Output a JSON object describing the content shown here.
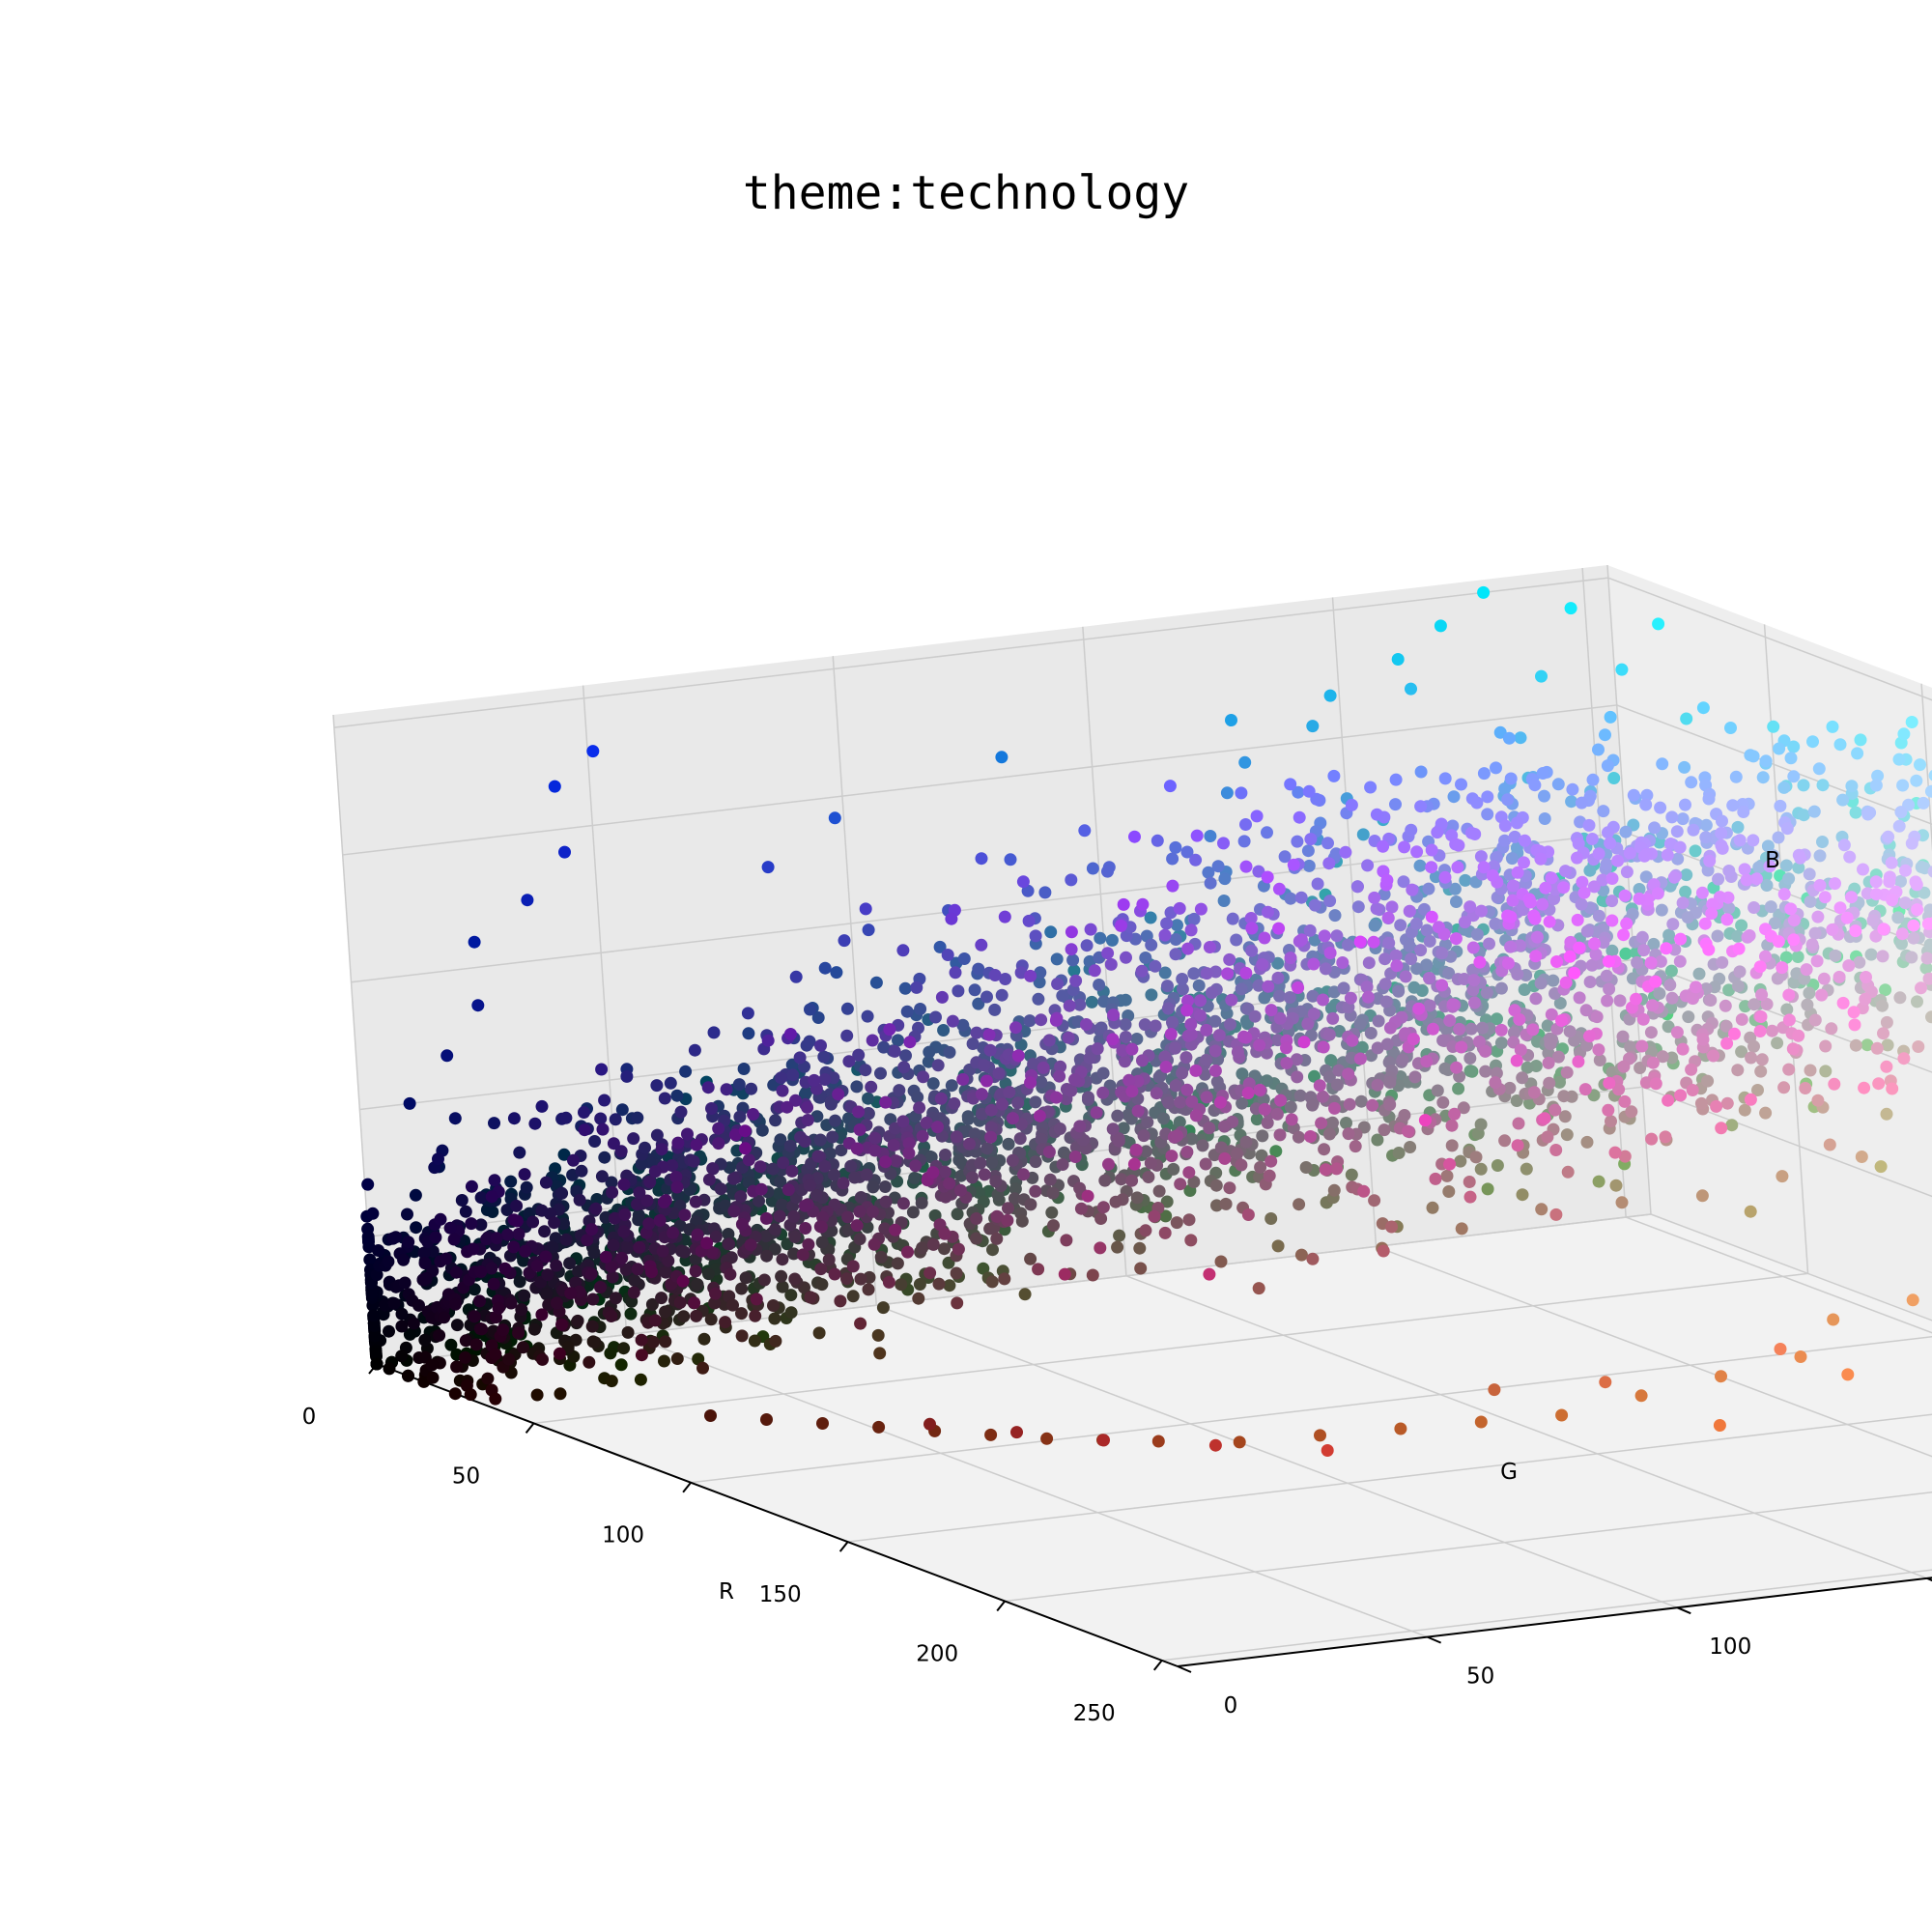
{
  "chart_data": {
    "type": "scatter",
    "title": "theme:technology",
    "xlabel": "R",
    "ylabel": "G",
    "zlabel": "B",
    "xlim": [
      0,
      255
    ],
    "ylim": [
      0,
      255
    ],
    "zlim": [
      0,
      255
    ],
    "ticks": [
      0,
      50,
      100,
      150,
      200,
      250
    ],
    "grid": true,
    "point_color": "rgb(R,G,B)",
    "description_of_distribution": "",
    "points": [
      [
        0,
        0,
        0
      ],
      [
        5,
        3,
        8
      ],
      [
        10,
        6,
        14
      ],
      [
        14,
        8,
        20
      ],
      [
        20,
        10,
        26
      ],
      [
        25,
        15,
        35
      ],
      [
        30,
        18,
        42
      ],
      [
        35,
        22,
        50
      ],
      [
        40,
        26,
        58
      ],
      [
        45,
        30,
        65
      ],
      [
        8,
        5,
        12
      ],
      [
        12,
        10,
        30
      ],
      [
        18,
        14,
        45
      ],
      [
        22,
        18,
        60
      ],
      [
        28,
        22,
        75
      ],
      [
        30,
        25,
        90
      ],
      [
        34,
        30,
        105
      ],
      [
        15,
        10,
        20
      ],
      [
        20,
        12,
        18
      ],
      [
        26,
        16,
        22
      ],
      [
        30,
        22,
        25
      ],
      [
        36,
        26,
        30
      ],
      [
        42,
        30,
        36
      ],
      [
        48,
        34,
        40
      ],
      [
        55,
        40,
        46
      ],
      [
        60,
        45,
        52
      ],
      [
        68,
        50,
        58
      ],
      [
        75,
        56,
        64
      ],
      [
        82,
        60,
        70
      ],
      [
        90,
        66,
        76
      ],
      [
        40,
        35,
        120
      ],
      [
        45,
        40,
        135
      ],
      [
        50,
        48,
        150
      ],
      [
        55,
        55,
        165
      ],
      [
        60,
        62,
        180
      ],
      [
        40,
        60,
        200
      ],
      [
        30,
        80,
        210
      ],
      [
        20,
        120,
        220
      ],
      [
        30,
        160,
        230
      ],
      [
        40,
        190,
        240
      ],
      [
        50,
        210,
        245
      ],
      [
        60,
        220,
        250
      ],
      [
        80,
        220,
        240
      ],
      [
        100,
        225,
        245
      ],
      [
        120,
        230,
        248
      ],
      [
        140,
        235,
        250
      ],
      [
        160,
        238,
        250
      ],
      [
        180,
        240,
        252
      ],
      [
        200,
        245,
        253
      ],
      [
        220,
        248,
        254
      ],
      [
        240,
        250,
        255
      ],
      [
        250,
        252,
        255
      ],
      [
        255,
        255,
        255
      ],
      [
        230,
        240,
        250
      ],
      [
        210,
        225,
        245
      ],
      [
        190,
        210,
        240
      ],
      [
        170,
        190,
        235
      ],
      [
        150,
        170,
        230
      ],
      [
        130,
        150,
        225
      ],
      [
        110,
        130,
        220
      ],
      [
        90,
        110,
        215
      ],
      [
        70,
        90,
        210
      ],
      [
        150,
        120,
        220
      ],
      [
        170,
        130,
        230
      ],
      [
        190,
        150,
        235
      ],
      [
        200,
        170,
        240
      ],
      [
        210,
        190,
        245
      ],
      [
        220,
        200,
        235
      ],
      [
        230,
        210,
        225
      ],
      [
        235,
        220,
        210
      ],
      [
        240,
        225,
        195
      ],
      [
        245,
        230,
        180
      ],
      [
        238,
        215,
        170
      ],
      [
        230,
        200,
        160
      ],
      [
        220,
        185,
        150
      ],
      [
        210,
        170,
        140
      ],
      [
        200,
        160,
        130
      ],
      [
        190,
        150,
        120
      ],
      [
        180,
        140,
        115
      ],
      [
        170,
        130,
        110
      ],
      [
        160,
        120,
        100
      ],
      [
        150,
        110,
        90
      ],
      [
        140,
        100,
        85
      ],
      [
        130,
        90,
        80
      ],
      [
        120,
        80,
        75
      ],
      [
        110,
        72,
        70
      ],
      [
        100,
        65,
        65
      ],
      [
        90,
        58,
        60
      ],
      [
        80,
        50,
        55
      ],
      [
        70,
        45,
        48
      ],
      [
        60,
        40,
        42
      ],
      [
        50,
        35,
        36
      ],
      [
        45,
        30,
        30
      ],
      [
        40,
        26,
        25
      ],
      [
        35,
        22,
        20
      ],
      [
        30,
        20,
        16
      ],
      [
        25,
        16,
        12
      ],
      [
        20,
        12,
        8
      ],
      [
        15,
        10,
        6
      ],
      [
        10,
        6,
        4
      ],
      [
        180,
        110,
        190
      ],
      [
        160,
        100,
        180
      ],
      [
        140,
        90,
        170
      ],
      [
        120,
        80,
        160
      ],
      [
        100,
        70,
        150
      ],
      [
        80,
        60,
        140
      ],
      [
        60,
        50,
        130
      ],
      [
        50,
        45,
        110
      ],
      [
        40,
        40,
        95
      ],
      [
        35,
        35,
        80
      ],
      [
        120,
        140,
        200
      ],
      [
        100,
        120,
        190
      ],
      [
        80,
        110,
        180
      ],
      [
        60,
        100,
        170
      ],
      [
        50,
        90,
        160
      ],
      [
        40,
        80,
        150
      ],
      [
        35,
        70,
        140
      ],
      [
        30,
        60,
        130
      ],
      [
        25,
        50,
        115
      ],
      [
        20,
        40,
        100
      ],
      [
        70,
        130,
        210
      ],
      [
        60,
        140,
        220
      ],
      [
        50,
        150,
        225
      ],
      [
        40,
        170,
        230
      ],
      [
        30,
        180,
        235
      ],
      [
        20,
        200,
        240
      ],
      [
        10,
        215,
        245
      ],
      [
        0,
        230,
        250
      ],
      [
        20,
        235,
        252
      ],
      [
        40,
        240,
        254
      ],
      [
        200,
        130,
        180
      ],
      [
        210,
        140,
        190
      ],
      [
        220,
        150,
        200
      ],
      [
        230,
        160,
        210
      ],
      [
        240,
        170,
        220
      ],
      [
        190,
        120,
        150
      ],
      [
        180,
        110,
        130
      ],
      [
        170,
        100,
        110
      ],
      [
        160,
        90,
        95
      ],
      [
        150,
        85,
        80
      ],
      [
        230,
        150,
        90
      ],
      [
        240,
        160,
        100
      ],
      [
        245,
        170,
        110
      ],
      [
        235,
        140,
        80
      ],
      [
        225,
        130,
        70
      ],
      [
        215,
        120,
        60
      ],
      [
        205,
        110,
        50
      ],
      [
        195,
        100,
        45
      ],
      [
        185,
        90,
        40
      ],
      [
        175,
        80,
        35
      ],
      [
        165,
        70,
        30
      ],
      [
        155,
        60,
        28
      ],
      [
        145,
        55,
        25
      ],
      [
        135,
        50,
        22
      ],
      [
        125,
        45,
        20
      ],
      [
        115,
        40,
        18
      ],
      [
        105,
        35,
        16
      ],
      [
        95,
        30,
        14
      ],
      [
        85,
        25,
        12
      ],
      [
        75,
        20,
        10
      ],
      [
        210,
        60,
        50
      ],
      [
        190,
        50,
        45
      ],
      [
        170,
        40,
        40
      ],
      [
        150,
        35,
        35
      ],
      [
        130,
        30,
        30
      ],
      [
        200,
        100,
        60
      ],
      [
        220,
        110,
        70
      ],
      [
        240,
        120,
        60
      ],
      [
        250,
        140,
        80
      ],
      [
        245,
        130,
        90
      ],
      [
        60,
        90,
        60
      ],
      [
        80,
        110,
        70
      ],
      [
        100,
        130,
        80
      ],
      [
        120,
        150,
        90
      ],
      [
        140,
        160,
        100
      ],
      [
        90,
        120,
        100
      ],
      [
        70,
        100,
        90
      ],
      [
        50,
        80,
        70
      ],
      [
        40,
        70,
        60
      ],
      [
        30,
        60,
        50
      ],
      [
        130,
        110,
        140
      ],
      [
        110,
        95,
        130
      ],
      [
        95,
        80,
        120
      ],
      [
        85,
        70,
        110
      ],
      [
        75,
        65,
        100
      ],
      [
        140,
        120,
        150
      ],
      [
        150,
        130,
        160
      ],
      [
        160,
        140,
        170
      ],
      [
        170,
        150,
        180
      ],
      [
        180,
        160,
        190
      ],
      [
        5,
        5,
        60
      ],
      [
        10,
        8,
        80
      ],
      [
        0,
        10,
        100
      ],
      [
        5,
        15,
        120
      ],
      [
        8,
        20,
        140
      ],
      [
        0,
        25,
        160
      ],
      [
        10,
        30,
        180
      ],
      [
        15,
        35,
        200
      ],
      [
        5,
        40,
        220
      ],
      [
        10,
        45,
        235
      ],
      [
        100,
        100,
        100
      ],
      [
        120,
        120,
        120
      ],
      [
        140,
        140,
        140
      ],
      [
        160,
        160,
        160
      ],
      [
        180,
        180,
        180
      ],
      [
        200,
        200,
        200
      ],
      [
        80,
        80,
        80
      ],
      [
        60,
        60,
        60
      ],
      [
        40,
        40,
        40
      ],
      [
        20,
        20,
        20
      ],
      [
        55,
        70,
        180
      ],
      [
        65,
        80,
        190
      ],
      [
        75,
        90,
        200
      ],
      [
        85,
        100,
        210
      ],
      [
        95,
        110,
        220
      ],
      [
        105,
        120,
        230
      ],
      [
        115,
        130,
        240
      ],
      [
        125,
        140,
        245
      ],
      [
        135,
        150,
        250
      ],
      [
        145,
        160,
        252
      ],
      [
        170,
        200,
        250
      ],
      [
        180,
        210,
        252
      ],
      [
        190,
        220,
        254
      ],
      [
        160,
        190,
        245
      ],
      [
        150,
        180,
        240
      ],
      [
        140,
        170,
        235
      ],
      [
        200,
        230,
        255
      ],
      [
        210,
        235,
        255
      ],
      [
        220,
        240,
        255
      ],
      [
        195,
        215,
        250
      ]
    ]
  }
}
